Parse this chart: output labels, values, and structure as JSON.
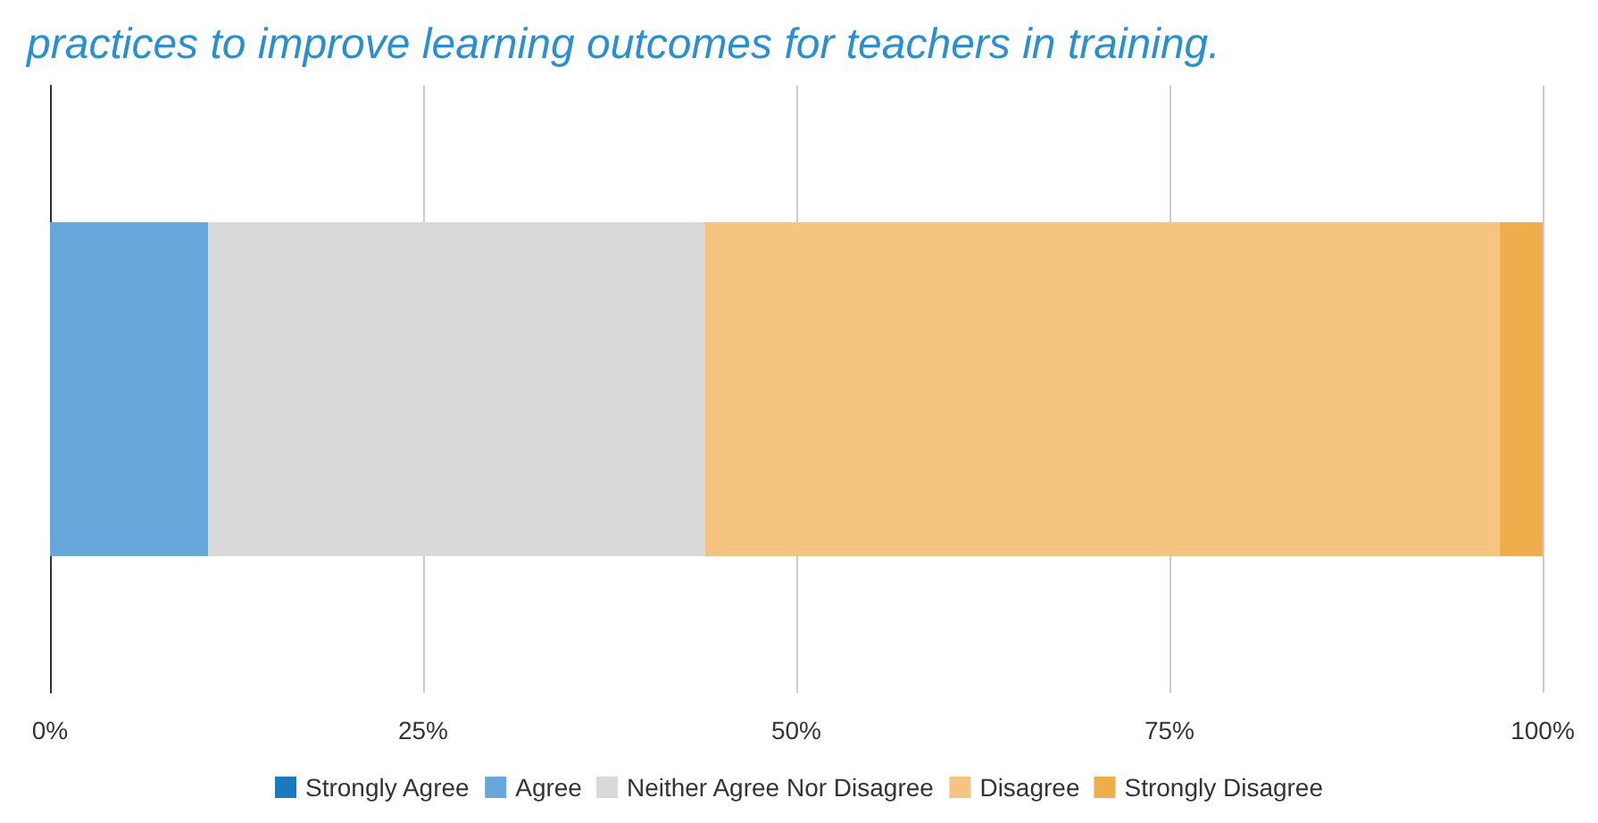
{
  "chart_data": {
    "type": "bar",
    "orientation": "horizontal",
    "stacked": true,
    "title": "practices to improve learning outcomes for teachers in training.",
    "categories": [
      null
    ],
    "series": [
      {
        "name": "Strongly Agree",
        "color": "#1a7abf",
        "values": [
          0
        ]
      },
      {
        "name": "Agree",
        "color": "#66a8dc",
        "values": [
          10.6
        ]
      },
      {
        "name": "Neither Agree Nor Disagree",
        "color": "#d9d9d9",
        "values": [
          33.3
        ]
      },
      {
        "name": "Disagree",
        "color": "#f5c480",
        "values": [
          53.2
        ]
      },
      {
        "name": "Strongly Disagree",
        "color": "#efad4c",
        "values": [
          2.9
        ]
      }
    ],
    "xlim": [
      0,
      100
    ],
    "xticks": [
      {
        "value": 0,
        "label": "0%"
      },
      {
        "value": 25,
        "label": "25%"
      },
      {
        "value": 50,
        "label": "50%"
      },
      {
        "value": 75,
        "label": "75%"
      },
      {
        "value": 100,
        "label": "100%"
      }
    ],
    "grid": "x",
    "legend": "bottom"
  }
}
